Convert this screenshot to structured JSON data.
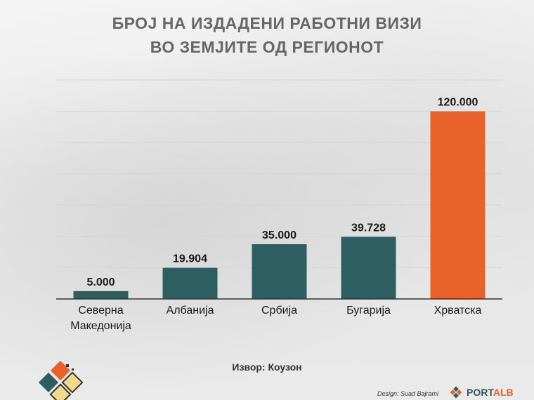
{
  "title": {
    "line1": "БРОЈ НА ИЗДАДЕНИ РАБОТНИ ВИЗИ",
    "line2": "ВО ЗЕМЈИТЕ ОД РЕГИОНОТ"
  },
  "source": "Извор: Коузон",
  "design_credit": "Design: Suad Bajrami",
  "brand": {
    "part1": "PORT",
    "part2": "ALB"
  },
  "colors": {
    "bar_default": "#2d5f62",
    "bar_highlight": "#e8622a",
    "grid": "#d4d4d4",
    "axis": "#333333",
    "title": "#666666"
  },
  "chart_data": {
    "type": "bar",
    "title": "БРОЈ НА ИЗДАДЕНИ РАБОТНИ ВИЗИ ВО ЗЕМЈИТЕ ОД РЕГИОНОТ",
    "categories": [
      [
        "Северна",
        "Македонија"
      ],
      [
        "Албанија"
      ],
      [
        "Србија"
      ],
      [
        "Бугарија"
      ],
      [
        "Хрватска"
      ]
    ],
    "values": [
      5000,
      19904,
      35000,
      39728,
      120000
    ],
    "data_labels": [
      "5.000",
      "19.904",
      "35.000",
      "39.728",
      "120.000"
    ],
    "highlight_index": 4,
    "ylim": [
      0,
      140000
    ],
    "grid": true,
    "xlabel": "",
    "ylabel": ""
  }
}
